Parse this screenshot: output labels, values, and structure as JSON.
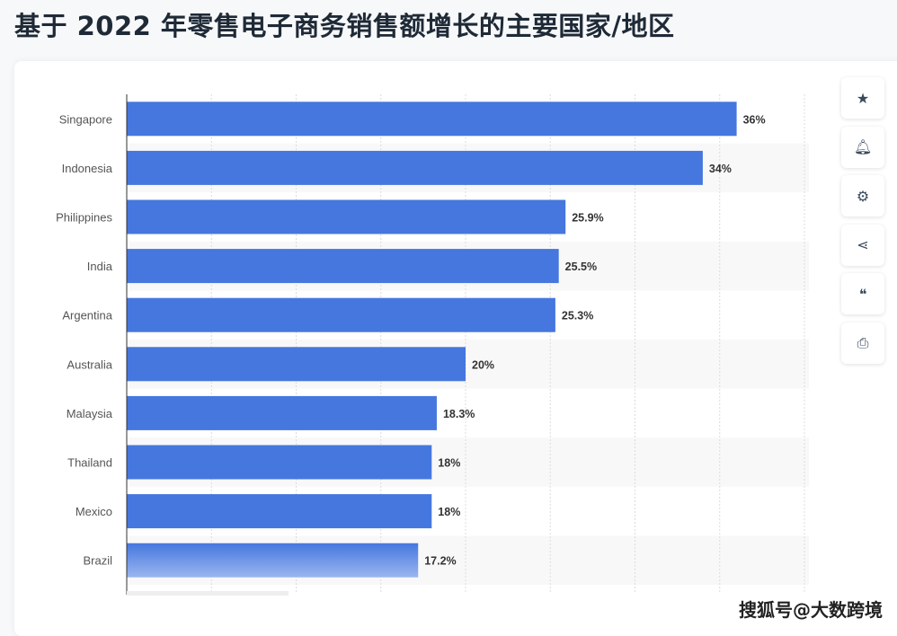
{
  "page_title": "基于 2022 年零售电子商务销售额增长的主要国家/地区",
  "watermark": "搜狐号@大数跨境",
  "side_buttons": [
    {
      "name": "favorite-button",
      "icon": "star-icon",
      "glyph": "★"
    },
    {
      "name": "notification-button",
      "icon": "bell-icon",
      "glyph": "🔔︎"
    },
    {
      "name": "settings-button",
      "icon": "gear-icon",
      "glyph": "⚙"
    },
    {
      "name": "share-button",
      "icon": "share-icon",
      "glyph": "⋖"
    },
    {
      "name": "cite-button",
      "icon": "quote-icon",
      "glyph": "❝"
    },
    {
      "name": "print-button",
      "icon": "printer-icon",
      "glyph": "⎙"
    }
  ],
  "colors": {
    "bar": "#4577de",
    "text": "#333333",
    "label": "#555555",
    "stripe": "#f8f8f8"
  },
  "chart_data": {
    "type": "bar",
    "orientation": "horizontal",
    "title": "基于 2022 年零售电子商务销售额增长的主要国家/地区",
    "categories": [
      "Singapore",
      "Indonesia",
      "Philippines",
      "India",
      "Argentina",
      "Australia",
      "Malaysia",
      "Thailand",
      "Mexico",
      "Brazil"
    ],
    "values": [
      36,
      34,
      25.9,
      25.5,
      25.3,
      20,
      18.3,
      18,
      18,
      17.2
    ],
    "data_labels": [
      "36%",
      "34%",
      "25.9%",
      "25.5%",
      "25.3%",
      "20%",
      "18.3%",
      "18%",
      "18%",
      "17.2%"
    ],
    "xlim": [
      0,
      40
    ],
    "grid": true,
    "xlabel": "",
    "ylabel": ""
  }
}
